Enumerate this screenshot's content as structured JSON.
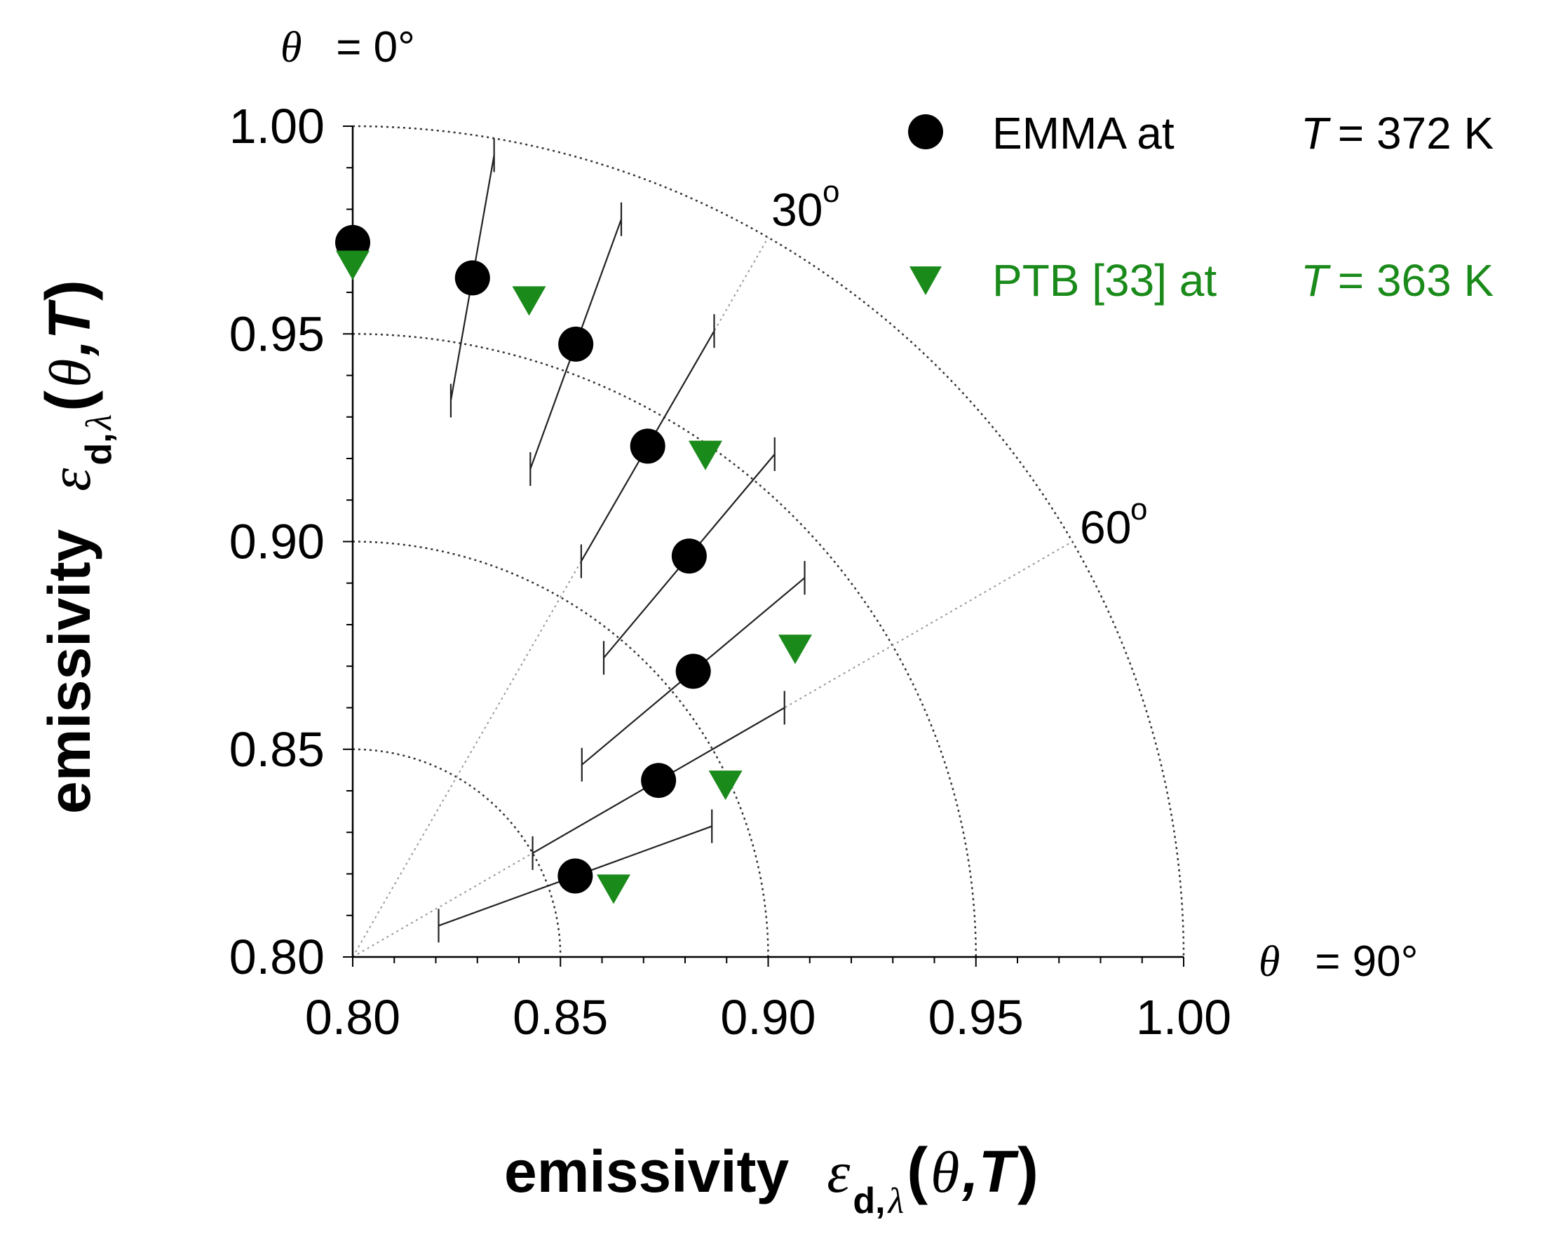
{
  "chart_data": {
    "type": "scatter",
    "subtype": "polar-quadrant",
    "title": "",
    "xlabel": {
      "word": "emissivity",
      "symbol": "ε",
      "sub_bold": "d,",
      "sub_sym": "λ",
      "paren_open": "(",
      "theta": "θ",
      "comma_T": ",T",
      "paren_close": ")"
    },
    "ylabel": {
      "word": "emissivity",
      "symbol": "ε",
      "sub_bold": "d,",
      "sub_sym": "λ",
      "paren_open": "(",
      "theta": "θ",
      "comma_T": ",T",
      "paren_close": ")"
    },
    "xlim": [
      0.8,
      1.0
    ],
    "ylim": [
      0.8,
      1.0
    ],
    "x_ticks": [
      "0.80",
      "0.85",
      "0.90",
      "0.95",
      "1.00"
    ],
    "y_ticks": [
      "0.80",
      "0.85",
      "0.90",
      "0.95",
      "1.00"
    ],
    "radial_grid": [
      0.85,
      0.9,
      0.95,
      1.0
    ],
    "angle_lines_deg": [
      30,
      60
    ],
    "angle_labels": {
      "a30": "30",
      "a60": "60",
      "deg": "o"
    },
    "theta_labels": {
      "top_sym": "θ",
      "top_val": " = 0°",
      "right_sym": "θ",
      "right_val": " = 90°"
    },
    "legend_position": "top-right",
    "series": [
      {
        "name": "EMMA",
        "legend_text": "EMMA at",
        "legend_T": "T",
        "legend_value": " = 372 K",
        "marker": "circle",
        "color": "#000000",
        "angles_deg": [
          0,
          10,
          20,
          30,
          40,
          50,
          60,
          70
        ],
        "emissivity": [
          0.972,
          0.966,
          0.957,
          0.942,
          0.926,
          0.907,
          0.885,
          0.857
        ],
        "error_minus": [
          0.0,
          0.03,
          0.032,
          0.032,
          0.032,
          0.035,
          0.035,
          0.035
        ],
        "error_plus": [
          0.0,
          0.03,
          0.032,
          0.032,
          0.032,
          0.035,
          0.035,
          0.035
        ]
      },
      {
        "name": "PTB [33]",
        "legend_text": "PTB [33] at",
        "legend_T": "T",
        "legend_value": " = 363 K",
        "marker": "triangle-down",
        "color": "#1a8a1a",
        "angles_deg": [
          0,
          15,
          35,
          55,
          65,
          75
        ],
        "emissivity": [
          0.967,
          0.964,
          0.948,
          0.93,
          0.899,
          0.865
        ]
      }
    ]
  }
}
